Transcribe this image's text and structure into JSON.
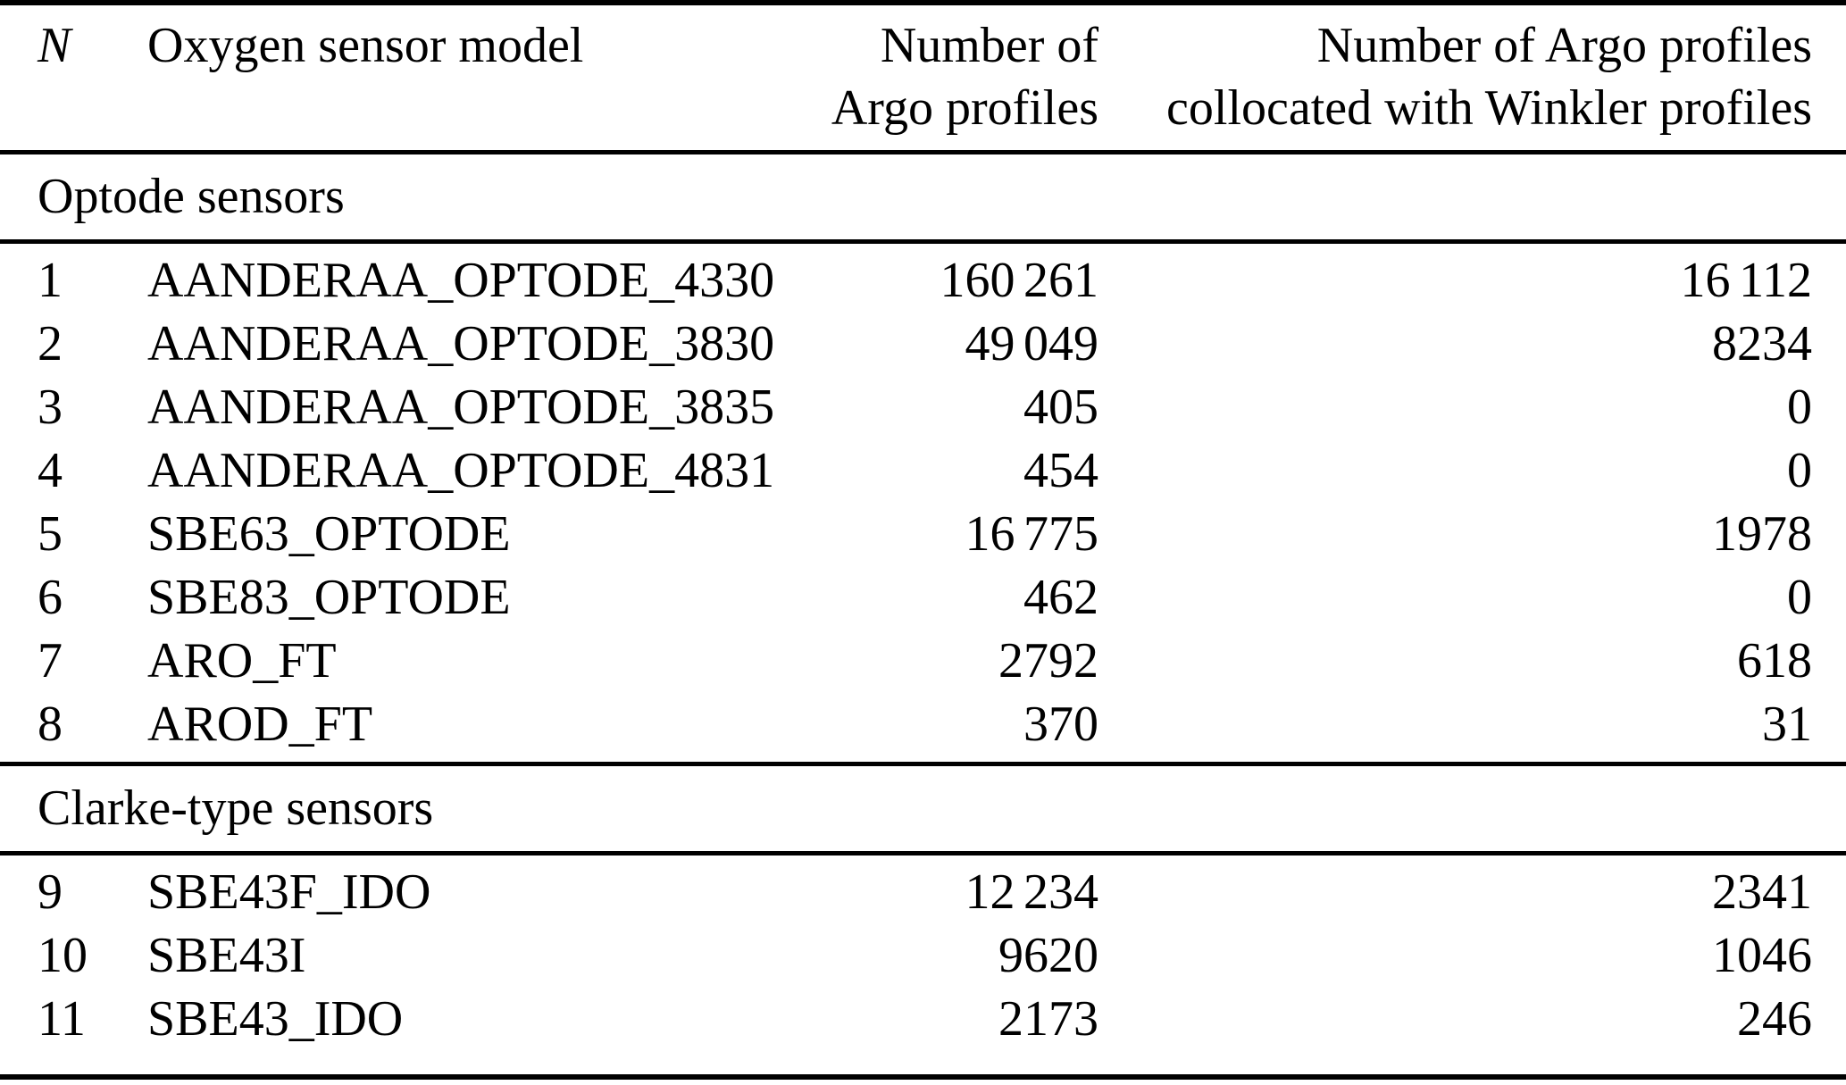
{
  "table": {
    "header": {
      "n": "N",
      "model": "Oxygen sensor model",
      "argo_line1": "Number of",
      "argo_line2": "Argo profiles",
      "winkler_line1": "Number of Argo profiles",
      "winkler_line2": "collocated with Winkler profiles"
    },
    "groups": [
      {
        "label": "Optode sensors",
        "rows": [
          {
            "n": "1",
            "model": "AANDERAA_OPTODE_4330",
            "argo": "160 261",
            "winkler": "16 112"
          },
          {
            "n": "2",
            "model": "AANDERAA_OPTODE_3830",
            "argo": "49 049",
            "winkler": "8234"
          },
          {
            "n": "3",
            "model": "AANDERAA_OPTODE_3835",
            "argo": "405",
            "winkler": "0"
          },
          {
            "n": "4",
            "model": "AANDERAA_OPTODE_4831",
            "argo": "454",
            "winkler": "0"
          },
          {
            "n": "5",
            "model": "SBE63_OPTODE",
            "argo": "16 775",
            "winkler": "1978"
          },
          {
            "n": "6",
            "model": "SBE83_OPTODE",
            "argo": "462",
            "winkler": "0"
          },
          {
            "n": "7",
            "model": "ARO_FT",
            "argo": "2792",
            "winkler": "618"
          },
          {
            "n": "8",
            "model": "AROD_FT",
            "argo": "370",
            "winkler": "31"
          }
        ]
      },
      {
        "label": "Clarke-type sensors",
        "rows": [
          {
            "n": "9",
            "model": "SBE43F_IDO",
            "argo": "12 234",
            "winkler": "2341"
          },
          {
            "n": "10",
            "model": "SBE43I",
            "argo": "9620",
            "winkler": "1046"
          },
          {
            "n": "11",
            "model": "SBE43_IDO",
            "argo": "2173",
            "winkler": "246"
          }
        ]
      }
    ]
  }
}
